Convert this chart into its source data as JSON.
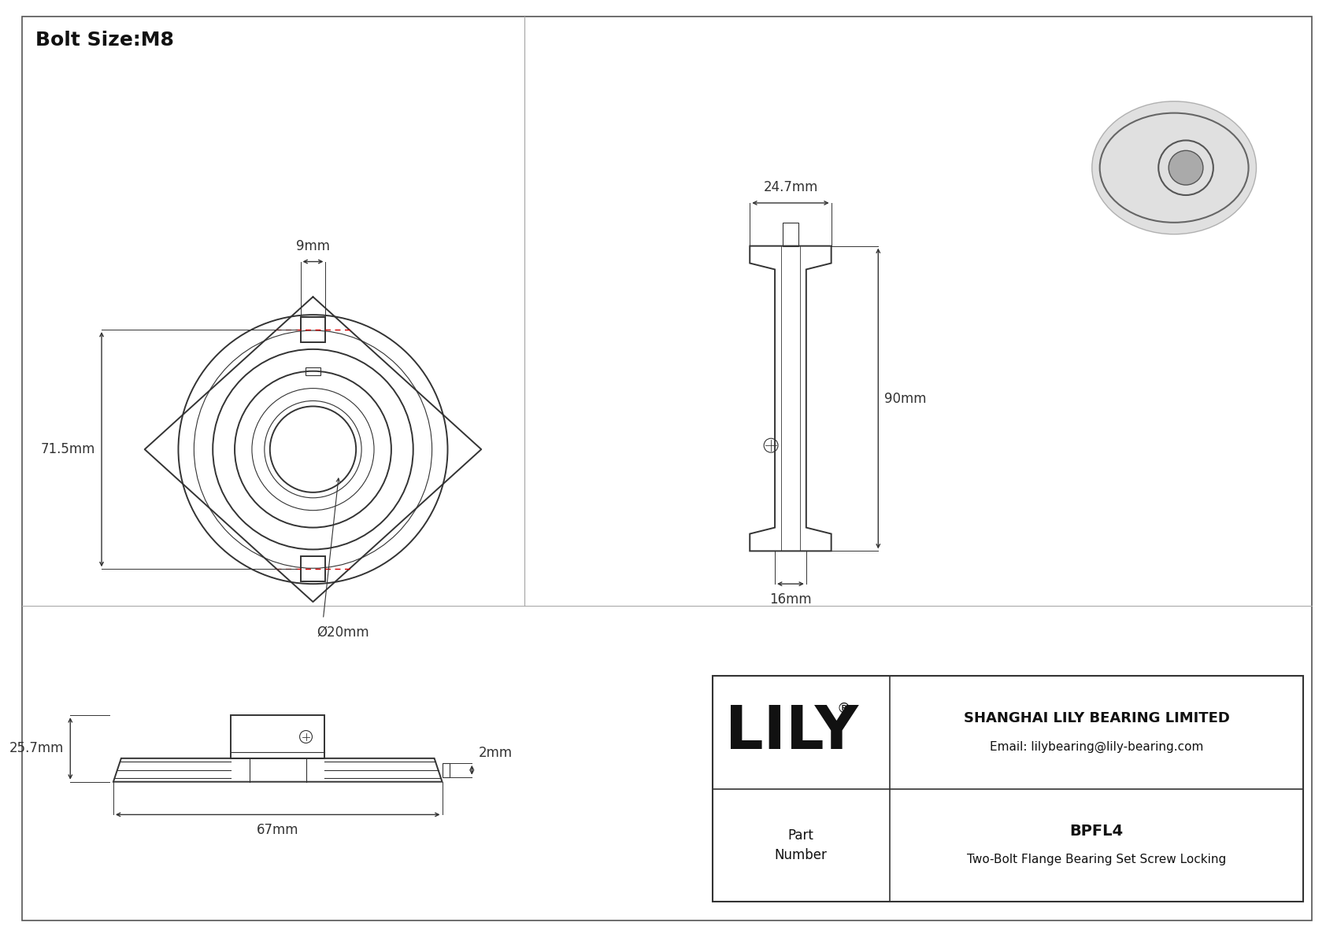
{
  "bg_color": "#ffffff",
  "line_color": "#333333",
  "red_dash_color": "#cc0000",
  "title": "Bolt Size:M8",
  "title_fontsize": 18,
  "dim_fontsize": 12,
  "company": "SHANGHAI LILY BEARING LIMITED",
  "email": "Email: lilybearing@lily-bearing.com",
  "part_number": "BPFL4",
  "part_desc": "Two-Bolt Flange Bearing Set Screw Locking",
  "lily_text": "LILY",
  "dims": {
    "bolt_width_9mm": "9mm",
    "height_71_5mm": "71.5mm",
    "bore_20mm": "Ø20mm",
    "side_width_24_7mm": "24.7mm",
    "side_height_90mm": "90mm",
    "bottom_16mm": "16mm",
    "front_height_25_7mm": "25.7mm",
    "front_width_67mm": "67mm",
    "front_offset_2mm": "2mm"
  }
}
